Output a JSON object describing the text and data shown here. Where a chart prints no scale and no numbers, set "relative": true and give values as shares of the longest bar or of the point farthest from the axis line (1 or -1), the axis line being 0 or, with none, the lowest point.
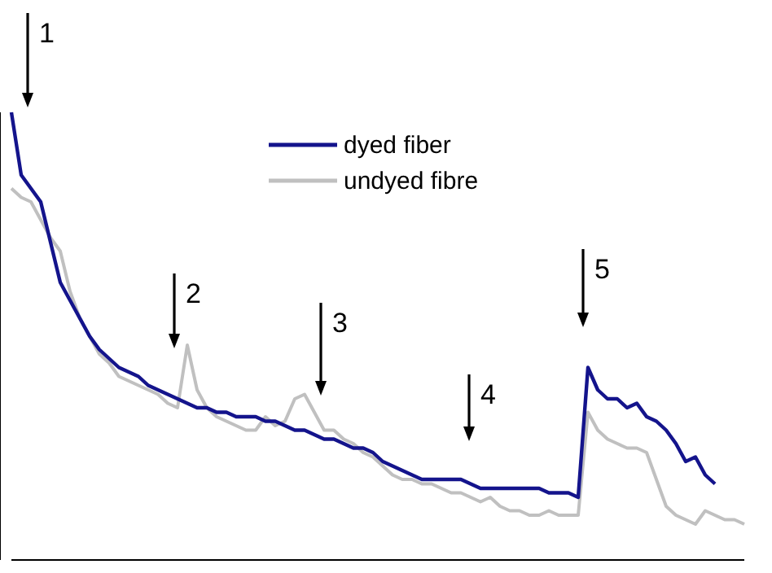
{
  "chart_data": {
    "type": "line",
    "relative": true,
    "legend": "top",
    "annotations": [
      "1",
      "2",
      "3",
      "4",
      "5"
    ],
    "categories": [
      null,
      null,
      null,
      null,
      null,
      null,
      null,
      null,
      null,
      null,
      null,
      null,
      null,
      null,
      null,
      null,
      null,
      null,
      null,
      null,
      null,
      null,
      null,
      null,
      null,
      null,
      null,
      null,
      null,
      null,
      null,
      null,
      null,
      null,
      null,
      null,
      null,
      null,
      null,
      null,
      null,
      null,
      null,
      null,
      null,
      null,
      null,
      null,
      null,
      null,
      null,
      null,
      null,
      null,
      null,
      null,
      null,
      null,
      null,
      null,
      null,
      null,
      null,
      null,
      null,
      null,
      null,
      null,
      null,
      null,
      null,
      null,
      null,
      null,
      null,
      null
    ],
    "series": [
      {
        "name": "dyed fiber",
        "color": "#14148c",
        "values": [
          1.0,
          0.86,
          0.83,
          0.8,
          0.71,
          0.62,
          0.58,
          0.54,
          0.5,
          0.47,
          0.45,
          0.43,
          0.42,
          0.41,
          0.39,
          0.38,
          0.37,
          0.36,
          0.35,
          0.34,
          0.34,
          0.33,
          0.33,
          0.32,
          0.32,
          0.32,
          0.31,
          0.31,
          0.3,
          0.29,
          0.29,
          0.28,
          0.27,
          0.27,
          0.26,
          0.25,
          0.25,
          0.24,
          0.22,
          0.21,
          0.2,
          0.19,
          0.18,
          0.18,
          0.18,
          0.18,
          0.18,
          0.17,
          0.16,
          0.16,
          0.16,
          0.16,
          0.16,
          0.16,
          0.16,
          0.15,
          0.15,
          0.15,
          0.14,
          0.43,
          0.38,
          0.36,
          0.36,
          0.34,
          0.35,
          0.32,
          0.31,
          0.29,
          0.26,
          0.22,
          0.23,
          0.19,
          0.17,
          null,
          null,
          null
        ]
      },
      {
        "name": "undyed fibre",
        "color": "#c0c0c0",
        "values": [
          0.83,
          0.81,
          0.8,
          0.76,
          0.72,
          0.69,
          0.6,
          0.54,
          0.5,
          0.46,
          0.44,
          0.41,
          0.4,
          0.39,
          0.38,
          0.37,
          0.35,
          0.34,
          0.48,
          0.38,
          0.34,
          0.32,
          0.31,
          0.3,
          0.29,
          0.29,
          0.32,
          0.3,
          0.31,
          0.36,
          0.37,
          0.33,
          0.29,
          0.29,
          0.27,
          0.26,
          0.24,
          0.23,
          0.21,
          0.19,
          0.18,
          0.18,
          0.17,
          0.17,
          0.16,
          0.15,
          0.15,
          0.14,
          0.13,
          0.14,
          0.12,
          0.11,
          0.11,
          0.1,
          0.1,
          0.11,
          0.1,
          0.1,
          0.1,
          0.33,
          0.29,
          0.27,
          0.26,
          0.25,
          0.25,
          0.24,
          0.18,
          0.12,
          0.1,
          0.09,
          0.08,
          0.11,
          0.1,
          0.09,
          0.09,
          0.08
        ]
      }
    ]
  }
}
